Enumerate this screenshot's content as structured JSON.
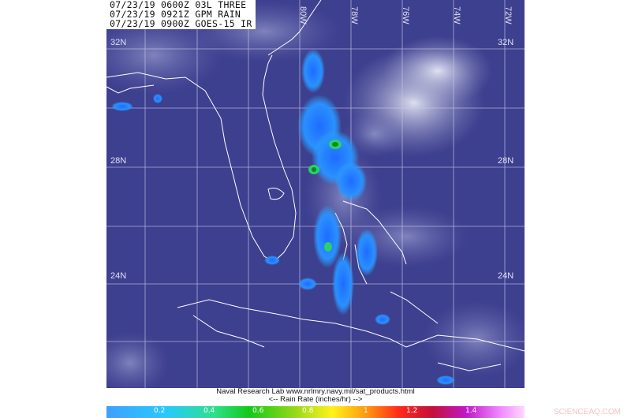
{
  "header": {
    "lines": [
      "07/23/19 0600Z 03L THREE",
      "07/23/19 0921Z GPM RAIN",
      "07/23/19 0900Z GOES-15 IR"
    ]
  },
  "grid": {
    "lon_labels": [
      "80W",
      "78W",
      "76W",
      "74W",
      "72W"
    ],
    "lat_labels_left": [
      "32N",
      "28N",
      "24N"
    ],
    "lat_labels_right": [
      "32N",
      "28N",
      "24N"
    ]
  },
  "credit": {
    "line1": "Naval Research Lab  www.nrlmry.navy.mil/sat_products.html",
    "line2": "<--   Rain Rate (inches/hr)   -->"
  },
  "colorbar": {
    "ticks": [
      "0.2",
      "0.4",
      "0.6",
      "0.8",
      "1",
      "1.2",
      "1.4"
    ],
    "colors": [
      "#3fa0ff",
      "#27c8ff",
      "#13c81a",
      "#fff21a",
      "#ff2a1a",
      "#c018c8",
      "#ffd6ff"
    ]
  },
  "watermark": "SCIENCEAQ.COM"
}
